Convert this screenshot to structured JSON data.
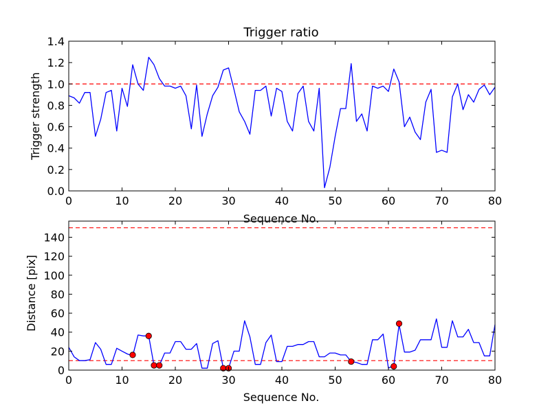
{
  "chart_data": [
    {
      "type": "line",
      "title": "Trigger ratio",
      "xlabel": "Sequence No.",
      "ylabel": "Trigger strength",
      "xlim": [
        0,
        80
      ],
      "ylim": [
        0,
        1.4
      ],
      "xticks": [
        "0",
        "10",
        "20",
        "30",
        "40",
        "50",
        "60",
        "70",
        "80"
      ],
      "yticks": [
        "0.0",
        "0.2",
        "0.4",
        "0.6",
        "0.8",
        "1.0",
        "1.2",
        "1.4"
      ],
      "threshold": 1.0,
      "series": [
        {
          "name": "trigger strength",
          "color": "#0000ff",
          "x": [
            0,
            1,
            2,
            3,
            4,
            5,
            6,
            7,
            8,
            9,
            10,
            11,
            12,
            13,
            14,
            15,
            16,
            17,
            18,
            19,
            20,
            21,
            22,
            23,
            24,
            25,
            26,
            27,
            28,
            29,
            30,
            31,
            32,
            33,
            34,
            35,
            36,
            37,
            38,
            39,
            40,
            41,
            42,
            43,
            44,
            45,
            46,
            47,
            48,
            49,
            50,
            51,
            52,
            53,
            54,
            55,
            56,
            57,
            58,
            59,
            60,
            61,
            62,
            63,
            64,
            65,
            66,
            67,
            68,
            69,
            70,
            71,
            72,
            73,
            74,
            75,
            76,
            77,
            78,
            79,
            80
          ],
          "values": [
            0.89,
            0.87,
            0.82,
            0.92,
            0.92,
            0.51,
            0.67,
            0.92,
            0.94,
            0.56,
            0.96,
            0.79,
            1.18,
            1.0,
            0.94,
            1.25,
            1.18,
            1.05,
            0.98,
            0.98,
            0.96,
            0.98,
            0.89,
            0.58,
            0.99,
            0.51,
            0.72,
            0.89,
            0.97,
            1.13,
            1.15,
            0.95,
            0.74,
            0.65,
            0.53,
            0.94,
            0.94,
            0.98,
            0.7,
            0.96,
            0.93,
            0.65,
            0.56,
            0.91,
            0.98,
            0.65,
            0.56,
            0.96,
            0.03,
            0.22,
            0.51,
            0.77,
            0.77,
            1.19,
            0.65,
            0.72,
            0.56,
            0.98,
            0.96,
            0.98,
            0.93,
            1.14,
            1.02,
            0.6,
            0.69,
            0.55,
            0.48,
            0.83,
            0.95,
            0.36,
            0.38,
            0.36,
            0.88,
            1.0,
            0.76,
            0.9,
            0.83,
            0.95,
            0.99,
            0.9,
            0.97
          ]
        }
      ]
    },
    {
      "type": "line",
      "title": "",
      "xlabel": "Sequence No.",
      "ylabel": "Distance [pix]",
      "xlim": [
        0,
        80
      ],
      "ylim": [
        0,
        157
      ],
      "xticks": [
        "0",
        "10",
        "20",
        "30",
        "40",
        "50",
        "60",
        "70",
        "80"
      ],
      "yticks": [
        "0",
        "20",
        "40",
        "60",
        "80",
        "100",
        "120",
        "140"
      ],
      "thresholds": [
        10,
        150
      ],
      "series": [
        {
          "name": "distance",
          "color": "#0000ff",
          "x": [
            0,
            1,
            2,
            3,
            4,
            5,
            6,
            7,
            8,
            9,
            10,
            11,
            12,
            13,
            14,
            15,
            16,
            17,
            18,
            19,
            20,
            21,
            22,
            23,
            24,
            25,
            26,
            27,
            28,
            29,
            30,
            31,
            32,
            33,
            34,
            35,
            36,
            37,
            38,
            39,
            40,
            41,
            42,
            43,
            44,
            45,
            46,
            47,
            48,
            49,
            50,
            51,
            52,
            53,
            54,
            55,
            56,
            57,
            58,
            59,
            60,
            61,
            62,
            63,
            64,
            65,
            66,
            67,
            68,
            69,
            70,
            71,
            72,
            73,
            74,
            75,
            76,
            77,
            78,
            79,
            80
          ],
          "values": [
            24,
            14,
            10,
            10,
            11,
            29,
            22,
            6,
            6,
            23,
            20,
            17,
            15,
            37,
            36,
            36,
            5,
            5,
            18,
            18,
            30,
            30,
            22,
            22,
            28,
            2,
            2,
            28,
            31,
            2,
            2,
            20,
            20,
            52,
            35,
            6,
            6,
            29,
            37,
            9,
            9,
            25,
            25,
            27,
            27,
            30,
            30,
            14,
            14,
            18,
            18,
            16,
            16,
            9,
            8,
            6,
            6,
            32,
            32,
            38,
            2,
            5,
            48,
            19,
            19,
            21,
            32,
            32,
            32,
            54,
            24,
            24,
            52,
            35,
            35,
            43,
            29,
            29,
            15,
            15,
            48
          ]
        },
        {
          "name": "flagged points",
          "color": "#ff0000",
          "x": [
            12,
            15,
            16,
            17,
            29,
            30,
            53,
            61,
            62
          ],
          "values": [
            16,
            36,
            5,
            5,
            2,
            2,
            9,
            4,
            49
          ]
        }
      ]
    }
  ]
}
